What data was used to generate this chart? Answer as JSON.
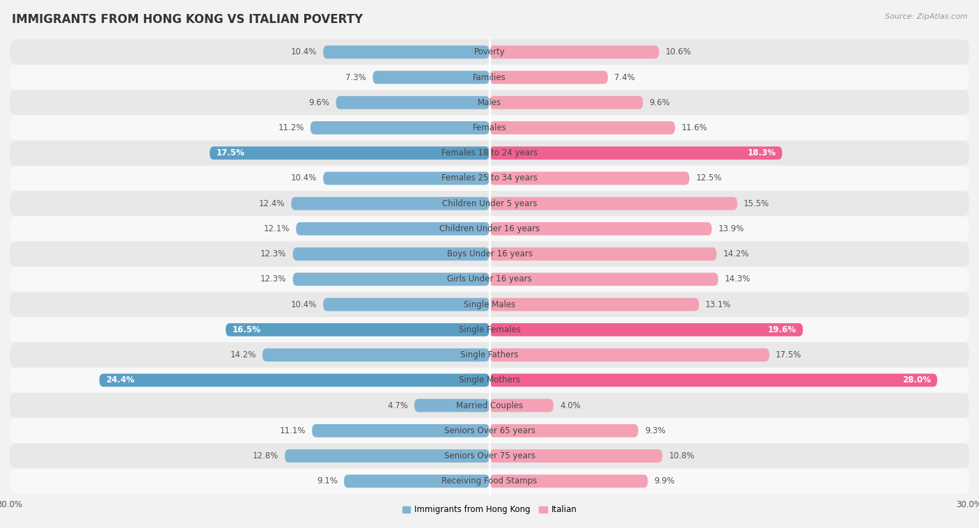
{
  "title": "IMMIGRANTS FROM HONG KONG VS ITALIAN POVERTY",
  "source": "Source: ZipAtlas.com",
  "categories": [
    "Poverty",
    "Families",
    "Males",
    "Females",
    "Females 18 to 24 years",
    "Females 25 to 34 years",
    "Children Under 5 years",
    "Children Under 16 years",
    "Boys Under 16 years",
    "Girls Under 16 years",
    "Single Males",
    "Single Females",
    "Single Fathers",
    "Single Mothers",
    "Married Couples",
    "Seniors Over 65 years",
    "Seniors Over 75 years",
    "Receiving Food Stamps"
  ],
  "hong_kong_values": [
    10.4,
    7.3,
    9.6,
    11.2,
    17.5,
    10.4,
    12.4,
    12.1,
    12.3,
    12.3,
    10.4,
    16.5,
    14.2,
    24.4,
    4.7,
    11.1,
    12.8,
    9.1
  ],
  "italian_values": [
    10.6,
    7.4,
    9.6,
    11.6,
    18.3,
    12.5,
    15.5,
    13.9,
    14.2,
    14.3,
    13.1,
    19.6,
    17.5,
    28.0,
    4.0,
    9.3,
    10.8,
    9.9
  ],
  "hong_kong_color": "#7fb3d3",
  "italian_color": "#f4a0b5",
  "hong_kong_highlight_color": "#5a9ec4",
  "italian_highlight_color": "#f06090",
  "highlight_rows": [
    4,
    11,
    13
  ],
  "background_color": "#f2f2f2",
  "row_even_color": "#e8e8e8",
  "row_odd_color": "#f8f8f8",
  "axis_limit": 30.0,
  "bar_height": 0.52,
  "legend_label_hk": "Immigrants from Hong Kong",
  "legend_label_it": "Italian",
  "title_fontsize": 12,
  "label_fontsize": 8.5,
  "cat_fontsize": 8.5,
  "tick_fontsize": 8.5,
  "source_fontsize": 8
}
